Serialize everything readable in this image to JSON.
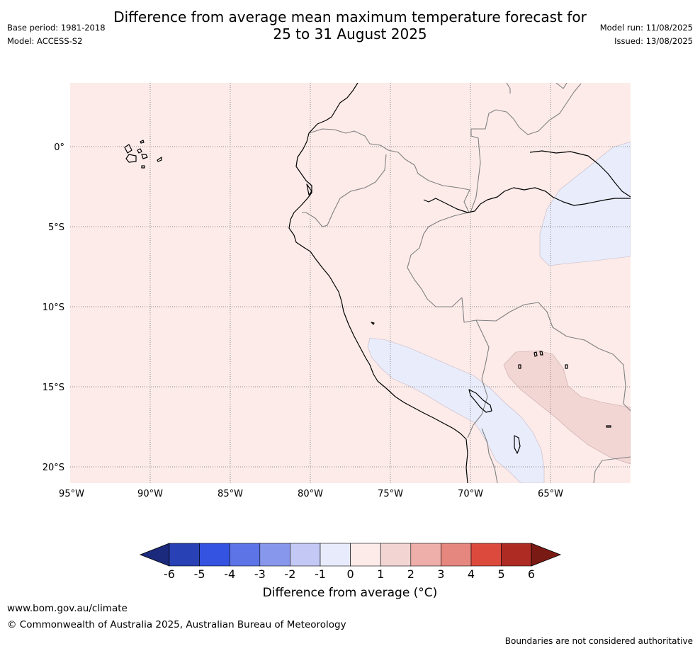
{
  "header": {
    "title": "Difference from average mean maximum temperature forecast for\n25 to 31 August 2025",
    "base_period": "Base period: 1981-2018",
    "model": "Model: ACCESS-S2",
    "model_run": "Model run: 11/08/2025",
    "issued": "Issued: 13/08/2025"
  },
  "map": {
    "background_color": "#fcebe9",
    "lat_labels": [
      "0°",
      "5°S",
      "10°S",
      "15°S",
      "20°S"
    ],
    "lon_labels": [
      "95°W",
      "90°W",
      "85°W",
      "80°W",
      "75°W",
      "70°W",
      "65°W"
    ],
    "anomaly_regions": [
      {
        "name": "amazon-cool-region",
        "category": "-1 to 0",
        "color": "#e8ecfb"
      },
      {
        "name": "andes-cool-band",
        "category": "-1 to 0",
        "color": "#e8ecfb"
      },
      {
        "name": "bolivia-warm-region",
        "category": "1 to 2",
        "color": "#f2d6d4"
      }
    ]
  },
  "colorbar": {
    "colors": [
      "#1b2a7c",
      "#2841b4",
      "#3453e0",
      "#5c74e6",
      "#8797ec",
      "#c3c9f4",
      "#e8ebfb",
      "#fcebe9",
      "#f2d5d3",
      "#eeaea9",
      "#e6877f",
      "#dc4a3e",
      "#ad2b23",
      "#7a1a14"
    ],
    "tick_labels": [
      "-6",
      "-5",
      "-4",
      "-3",
      "-2",
      "-1",
      "0",
      "1",
      "2",
      "3",
      "4",
      "5",
      "6"
    ],
    "label": "Difference from average (°C)"
  },
  "footer": {
    "url": "www.bom.gov.au/climate",
    "copyright": "© Commonwealth of Australia 2025, Australian Bureau of Meteorology",
    "note": "Boundaries are not considered authoritative"
  }
}
